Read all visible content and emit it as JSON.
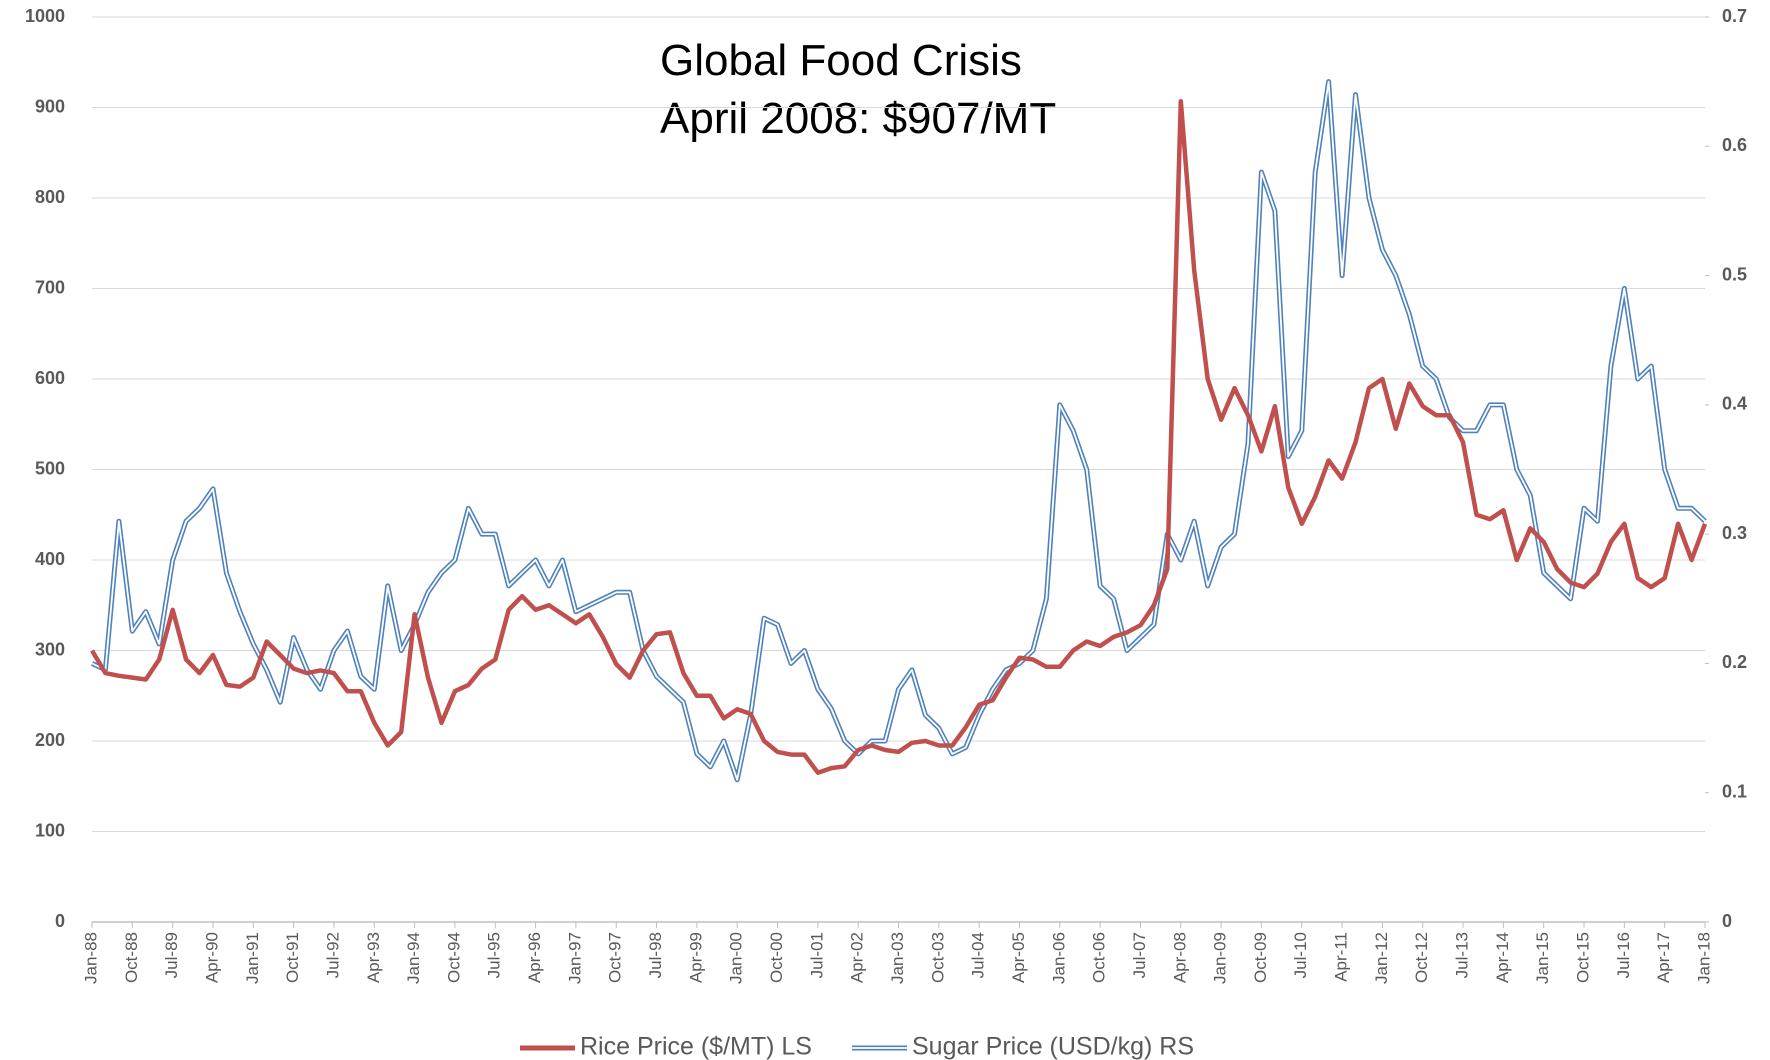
{
  "chart_data": {
    "type": "line",
    "annotation": [
      "Global Food Crisis",
      "April 2008: $907/MT"
    ],
    "categories": [
      "Jan-88",
      null,
      null,
      "Oct-88",
      null,
      null,
      "Jul-89",
      null,
      null,
      "Apr-90",
      null,
      null,
      "Jan-91",
      null,
      null,
      "Oct-91",
      null,
      null,
      "Jul-92",
      null,
      null,
      "Apr-93",
      null,
      null,
      "Jan-94",
      null,
      null,
      "Oct-94",
      null,
      null,
      "Jul-95",
      null,
      null,
      "Apr-96",
      null,
      null,
      "Jan-97",
      null,
      null,
      "Oct-97",
      null,
      null,
      "Jul-98",
      null,
      null,
      "Apr-99",
      null,
      null,
      "Jan-00",
      null,
      null,
      "Oct-00",
      null,
      null,
      "Jul-01",
      null,
      null,
      "Apr-02",
      null,
      null,
      "Jan-03",
      null,
      null,
      "Oct-03",
      null,
      null,
      "Jul-04",
      null,
      null,
      "Apr-05",
      null,
      null,
      "Jan-06",
      null,
      null,
      "Oct-06",
      null,
      null,
      "Jul-07",
      null,
      null,
      "Apr-08",
      null,
      null,
      "Jan-09",
      null,
      null,
      "Oct-09",
      null,
      null,
      "Jul-10",
      null,
      null,
      "Apr-11",
      null,
      null,
      "Jan-12",
      null,
      null,
      "Oct-12",
      null,
      null,
      "Jul-13",
      null,
      null,
      "Apr-14",
      null,
      null,
      "Jan-15",
      null,
      null,
      "Oct-15",
      null,
      null,
      "Jul-16",
      null,
      null,
      "Apr-17",
      null,
      null,
      "Jan-18"
    ],
    "series": [
      {
        "name": "Rice Price ($/MT) LS",
        "color": "#c0504d",
        "axis": "y",
        "values": [
          300,
          275,
          272,
          270,
          268,
          290,
          345,
          290,
          275,
          295,
          262,
          260,
          270,
          310,
          295,
          280,
          275,
          278,
          275,
          255,
          255,
          220,
          195,
          210,
          340,
          270,
          220,
          255,
          262,
          280,
          290,
          345,
          360,
          345,
          350,
          340,
          330,
          340,
          315,
          285,
          270,
          300,
          318,
          320,
          275,
          250,
          250,
          225,
          235,
          230,
          200,
          188,
          185,
          185,
          165,
          170,
          172,
          190,
          195,
          190,
          188,
          198,
          200,
          195,
          195,
          215,
          240,
          245,
          270,
          292,
          290,
          282,
          282,
          300,
          310,
          305,
          315,
          320,
          328,
          350,
          390,
          907,
          720,
          600,
          555,
          590,
          560,
          520,
          570,
          480,
          440,
          470,
          510,
          490,
          530,
          590,
          600,
          545,
          595,
          570,
          560,
          560,
          530,
          450,
          445,
          455,
          400,
          435,
          420,
          390,
          375,
          370,
          385,
          420,
          440,
          380,
          370,
          380,
          440,
          400,
          440
        ]
      },
      {
        "name": "Sugar Price (USD/kg) RS",
        "color": "#4f81bd",
        "axis": "y2",
        "values": [
          0.2,
          0.195,
          0.31,
          0.225,
          0.24,
          0.215,
          0.28,
          0.31,
          0.32,
          0.335,
          0.27,
          0.24,
          0.215,
          0.195,
          0.17,
          0.22,
          0.195,
          0.18,
          0.21,
          0.225,
          0.19,
          0.18,
          0.26,
          0.21,
          0.23,
          0.255,
          0.27,
          0.28,
          0.32,
          0.3,
          0.3,
          0.26,
          0.27,
          0.28,
          0.26,
          0.28,
          0.24,
          0.245,
          0.25,
          0.255,
          0.255,
          0.21,
          0.19,
          0.18,
          0.17,
          0.13,
          0.12,
          0.14,
          0.11,
          0.16,
          0.235,
          0.23,
          0.2,
          0.21,
          0.18,
          0.165,
          0.14,
          0.13,
          0.14,
          0.14,
          0.18,
          0.195,
          0.16,
          0.15,
          0.13,
          0.135,
          0.16,
          0.18,
          0.195,
          0.2,
          0.21,
          0.25,
          0.4,
          0.38,
          0.35,
          0.26,
          0.25,
          0.21,
          0.22,
          0.23,
          0.3,
          0.28,
          0.31,
          0.26,
          0.29,
          0.3,
          0.37,
          0.58,
          0.55,
          0.36,
          0.38,
          0.58,
          0.65,
          0.5,
          0.64,
          0.56,
          0.52,
          0.5,
          0.47,
          0.43,
          0.42,
          0.39,
          0.38,
          0.38,
          0.4,
          0.4,
          0.35,
          0.33,
          0.27,
          0.26,
          0.25,
          0.32,
          0.31,
          0.43,
          0.49,
          0.42,
          0.43,
          0.35,
          0.32,
          0.32,
          0.31
        ]
      }
    ],
    "ylim": [
      0,
      1000
    ],
    "yticks": [
      0,
      100,
      200,
      300,
      400,
      500,
      600,
      700,
      800,
      900,
      1000
    ],
    "y2lim": [
      0,
      0.7
    ],
    "y2ticks": [
      0,
      0.1,
      0.2,
      0.3,
      0.4,
      0.5,
      0.6,
      0.7
    ],
    "grid": true,
    "legend": "bottom"
  }
}
